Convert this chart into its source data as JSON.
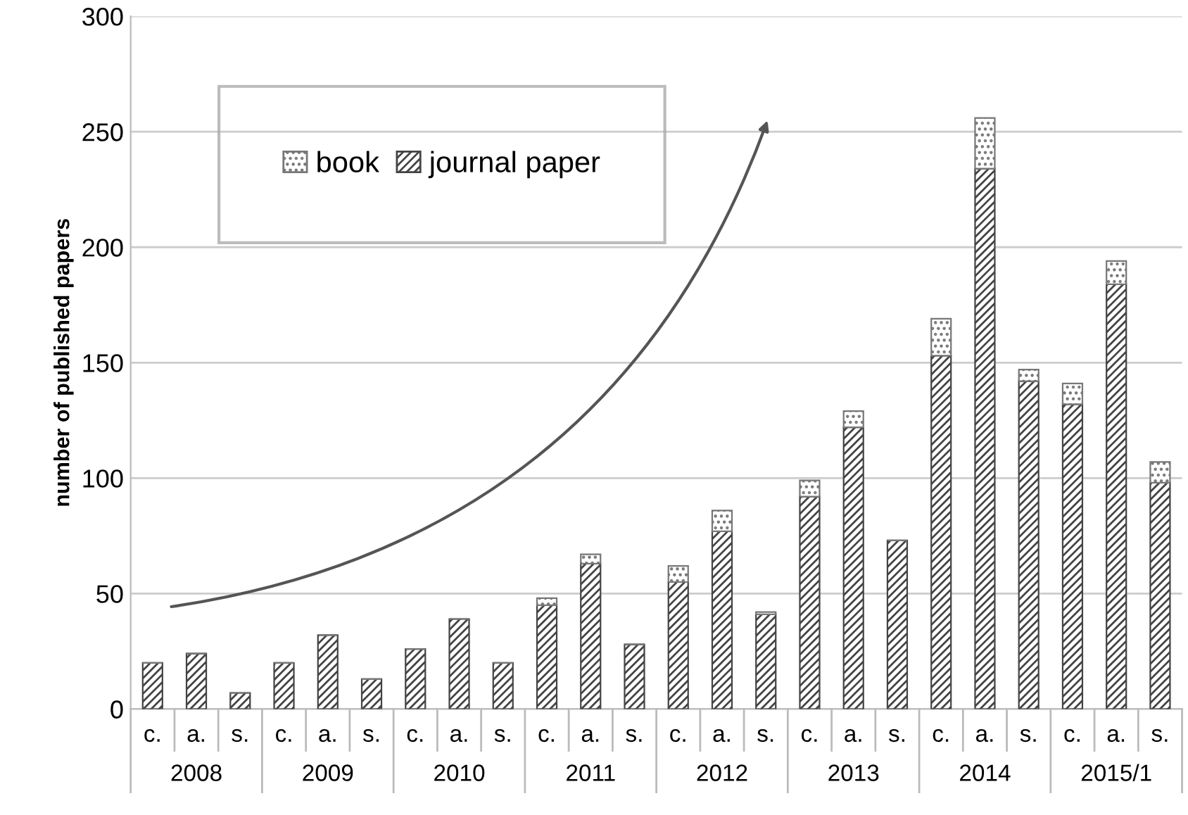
{
  "chart_data": {
    "type": "bar",
    "stacked": true,
    "ylabel": "number of published papers",
    "categories": [
      "c.",
      "a.",
      "s.",
      "c.",
      "a.",
      "s.",
      "c.",
      "a.",
      "s.",
      "c.",
      "a.",
      "s.",
      "c.",
      "a.",
      "s.",
      "c.",
      "a.",
      "s.",
      "c.",
      "a.",
      "s.",
      "c.",
      "a.",
      "s."
    ],
    "series": [
      {
        "name": "journal paper",
        "color": "#444444",
        "values": [
          20,
          24,
          7,
          20,
          32,
          13,
          26,
          39,
          20,
          45,
          63,
          28,
          55,
          77,
          41,
          92,
          122,
          73,
          153,
          234,
          142,
          132,
          184,
          98
        ]
      },
      {
        "name": "book",
        "color": "#777777",
        "values": [
          0,
          0,
          0,
          0,
          0,
          0,
          0,
          0,
          0,
          3,
          4,
          0,
          7,
          9,
          1,
          7,
          7,
          0,
          16,
          22,
          5,
          9,
          10,
          9
        ]
      }
    ],
    "annotations": [
      "2008",
      "2009",
      "2010",
      "2011",
      "2012",
      "2013",
      "2014",
      "2015/1"
    ],
    "ylim": [
      0,
      300
    ],
    "yticks": [
      0,
      50,
      100,
      150,
      200,
      250,
      300
    ],
    "grid": "y",
    "legend": "top left"
  }
}
